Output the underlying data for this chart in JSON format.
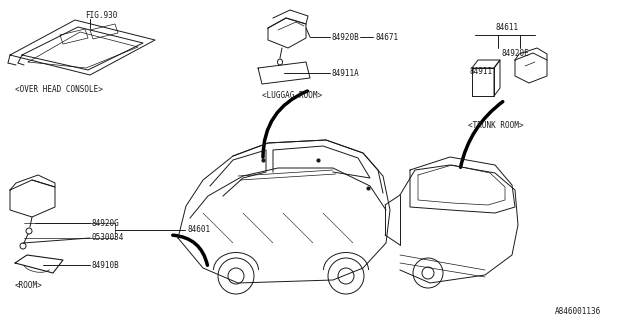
{
  "bg_color": "#ffffff",
  "line_color": "#1a1a1a",
  "text_color": "#1a1a1a",
  "fig_width": 6.4,
  "fig_height": 3.2,
  "dpi": 100,
  "watermark": "A846001136",
  "labels": {
    "fig930": "FIG.930",
    "over_head": "<OVER HEAD CONSOLE>",
    "luggag": "<LUGGAG ROOM>",
    "room": "<ROOM>",
    "trunk": "<TRUNK ROOM>",
    "p84920b": "84920B",
    "p84671": "84671",
    "p84911a": "84911A",
    "p84920g": "84920G",
    "p0530034": "0530034",
    "p84910b": "84910B",
    "p84601": "84601",
    "p84611": "84611",
    "p84920e": "84920E",
    "p84911": "84911"
  }
}
